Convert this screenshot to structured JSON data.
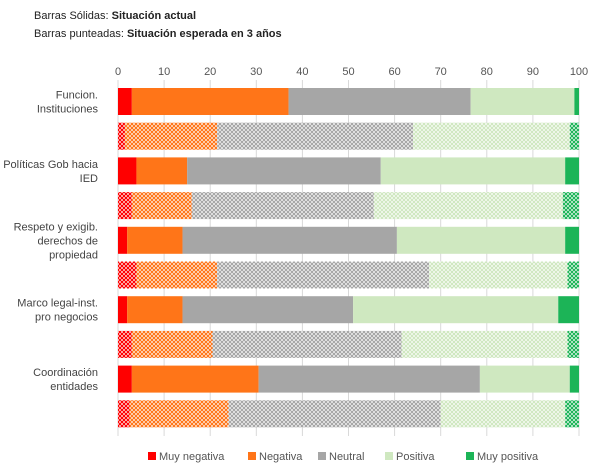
{
  "notes": {
    "solid_prefix": "Barras Sólidas: ",
    "solid_value": "Situación actual",
    "dotted_prefix": "Barras punteadas: ",
    "dotted_value": "Situación esperada en 3 años"
  },
  "chart_data": {
    "type": "bar",
    "orientation": "horizontal",
    "stacked": true,
    "xlim": [
      0,
      100
    ],
    "xticks": [
      0,
      10,
      20,
      30,
      40,
      50,
      60,
      70,
      80,
      90,
      100
    ],
    "grid": true,
    "legend_position": "bottom",
    "categories": [
      [
        "Funcion.",
        "Instituciones"
      ],
      [
        "Políticas Gob hacia",
        "IED"
      ],
      [
        "Respeto y exigib.",
        "derechos de",
        "propiedad"
      ],
      [
        "Marco legal-inst.",
        "pro negocios"
      ],
      [
        "Coordinación",
        "entidades"
      ]
    ],
    "series": [
      {
        "name": "Muy negativa",
        "color": "#ff0000"
      },
      {
        "name": "Negativa",
        "color": "#ff7518"
      },
      {
        "name": "Neutral",
        "color": "#a6a6a6"
      },
      {
        "name": "Positiva",
        "color": "#cfe8c0"
      },
      {
        "name": "Muy positiva",
        "color": "#1cb457"
      }
    ],
    "bars": [
      {
        "category": 0,
        "situation": "actual",
        "values": [
          3,
          34,
          39.5,
          22.5,
          1
        ]
      },
      {
        "category": 0,
        "situation": "esperada",
        "values": [
          1.5,
          20,
          42.5,
          34,
          2
        ]
      },
      {
        "category": 1,
        "situation": "actual",
        "values": [
          4,
          11,
          42,
          40,
          3
        ]
      },
      {
        "category": 1,
        "situation": "esperada",
        "values": [
          3,
          13,
          39.5,
          41,
          3.5
        ]
      },
      {
        "category": 2,
        "situation": "actual",
        "values": [
          2,
          12,
          46.5,
          36.5,
          3
        ]
      },
      {
        "category": 2,
        "situation": "esperada",
        "values": [
          4,
          17.5,
          46,
          30,
          2.5
        ]
      },
      {
        "category": 3,
        "situation": "actual",
        "values": [
          2,
          12,
          37,
          44.5,
          4.5
        ]
      },
      {
        "category": 3,
        "situation": "esperada",
        "values": [
          3,
          17.5,
          41,
          36,
          2.5
        ]
      },
      {
        "category": 4,
        "situation": "actual",
        "values": [
          3,
          27.5,
          48,
          19.5,
          2
        ]
      },
      {
        "category": 4,
        "situation": "esperada",
        "values": [
          2.5,
          21.5,
          46,
          27,
          3
        ]
      }
    ]
  }
}
